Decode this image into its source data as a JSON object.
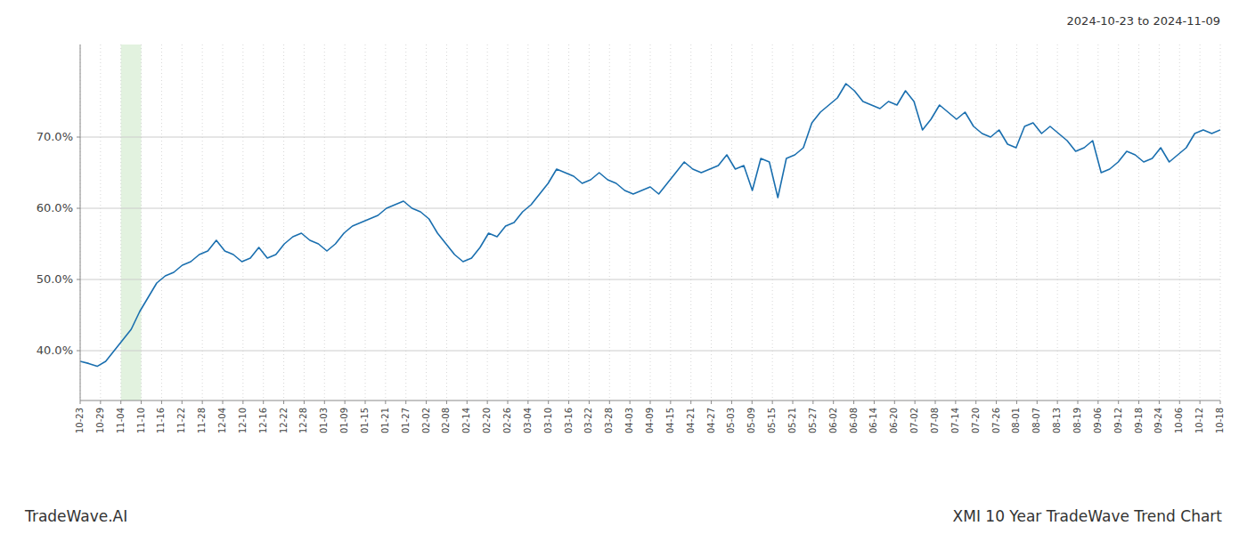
{
  "chart_data": {
    "type": "line",
    "title": "XMI 10 Year TradeWave Trend Chart",
    "subtitle": "2024-10-23 to 2024-11-09",
    "annotations": [
      "TradeWave.AI"
    ],
    "color": "#1a6faf",
    "grid": true,
    "highlight": {
      "xlim": [
        4.785714,
        7.178571
      ],
      "color": "#d6ecd2"
    },
    "xlim": [
      0,
      134
    ],
    "xticks": [
      {
        "value": 0,
        "label": "10-23"
      },
      {
        "value": 2.392857,
        "label": "10-29"
      },
      {
        "value": 4.785714,
        "label": "11-04"
      },
      {
        "value": 7.178571,
        "label": "11-10"
      },
      {
        "value": 9.571429,
        "label": "11-16"
      },
      {
        "value": 11.964286,
        "label": "11-22"
      },
      {
        "value": 14.357143,
        "label": "11-28"
      },
      {
        "value": 16.75,
        "label": "12-04"
      },
      {
        "value": 19.142857,
        "label": "12-10"
      },
      {
        "value": 21.535714,
        "label": "12-16"
      },
      {
        "value": 23.928571,
        "label": "12-22"
      },
      {
        "value": 26.321429,
        "label": "12-28"
      },
      {
        "value": 28.714286,
        "label": "01-03"
      },
      {
        "value": 31.107143,
        "label": "01-09"
      },
      {
        "value": 33.5,
        "label": "01-15"
      },
      {
        "value": 35.892857,
        "label": "01-21"
      },
      {
        "value": 38.285714,
        "label": "01-27"
      },
      {
        "value": 40.678571,
        "label": "02-02"
      },
      {
        "value": 43.071429,
        "label": "02-08"
      },
      {
        "value": 45.464286,
        "label": "02-14"
      },
      {
        "value": 47.857143,
        "label": "02-20"
      },
      {
        "value": 50.25,
        "label": "02-26"
      },
      {
        "value": 52.642857,
        "label": "03-04"
      },
      {
        "value": 55.035714,
        "label": "03-10"
      },
      {
        "value": 57.428571,
        "label": "03-16"
      },
      {
        "value": 59.821429,
        "label": "03-22"
      },
      {
        "value": 62.214286,
        "label": "03-28"
      },
      {
        "value": 64.607143,
        "label": "04-03"
      },
      {
        "value": 67,
        "label": "04-09"
      },
      {
        "value": 69.392857,
        "label": "04-15"
      },
      {
        "value": 71.785714,
        "label": "04-21"
      },
      {
        "value": 74.178571,
        "label": "04-27"
      },
      {
        "value": 76.571429,
        "label": "05-03"
      },
      {
        "value": 78.964286,
        "label": "05-09"
      },
      {
        "value": 81.357143,
        "label": "05-15"
      },
      {
        "value": 83.75,
        "label": "05-21"
      },
      {
        "value": 86.142857,
        "label": "05-27"
      },
      {
        "value": 88.535714,
        "label": "06-02"
      },
      {
        "value": 90.928571,
        "label": "06-08"
      },
      {
        "value": 93.321429,
        "label": "06-14"
      },
      {
        "value": 95.714286,
        "label": "06-20"
      },
      {
        "value": 98.107143,
        "label": "07-02"
      },
      {
        "value": 100.5,
        "label": "07-08"
      },
      {
        "value": 102.892857,
        "label": "07-14"
      },
      {
        "value": 105.285714,
        "label": "07-20"
      },
      {
        "value": 107.678571,
        "label": "07-26"
      },
      {
        "value": 110.071429,
        "label": "08-01"
      },
      {
        "value": 112.464286,
        "label": "08-07"
      },
      {
        "value": 114.857143,
        "label": "08-13"
      },
      {
        "value": 117.25,
        "label": "08-19"
      },
      {
        "value": 119.642857,
        "label": "09-06"
      },
      {
        "value": 122.035714,
        "label": "09-12"
      },
      {
        "value": 124.428571,
        "label": "09-18"
      },
      {
        "value": 126.821429,
        "label": "09-24"
      },
      {
        "value": 129.214286,
        "label": "10-06"
      },
      {
        "value": 131.607143,
        "label": "10-12"
      },
      {
        "value": 134,
        "label": "10-18"
      }
    ],
    "ylim": [
      33,
      83
    ],
    "yticks": [
      {
        "value": 40.0,
        "label": "40.0%"
      },
      {
        "value": 50.0,
        "label": "50.0%"
      },
      {
        "value": 60.0,
        "label": "60.0%"
      },
      {
        "value": 70.0,
        "label": "70.0%"
      }
    ],
    "values": [
      38.5,
      38.2,
      37.8,
      38.5,
      40.0,
      41.5,
      43.0,
      45.5,
      47.5,
      49.5,
      50.5,
      51.0,
      52.0,
      52.5,
      53.5,
      54.0,
      55.5,
      54.0,
      53.5,
      52.5,
      53.0,
      54.5,
      53.0,
      53.5,
      55.0,
      56.0,
      56.5,
      55.5,
      55.0,
      54.0,
      55.0,
      56.5,
      57.5,
      58.0,
      58.5,
      59.0,
      60.0,
      60.5,
      61.0,
      60.0,
      59.5,
      58.5,
      56.5,
      55.0,
      53.5,
      52.5,
      53.0,
      54.5,
      56.5,
      56.0,
      57.5,
      58.0,
      59.5,
      60.5,
      62.0,
      63.5,
      65.5,
      65.0,
      64.5,
      63.5,
      64.0,
      65.0,
      64.0,
      63.5,
      62.5,
      62.0,
      62.5,
      63.0,
      62.0,
      63.5,
      65.0,
      66.5,
      65.5,
      65.0,
      65.5,
      66.0,
      67.5,
      65.5,
      66.0,
      62.5,
      67.0,
      66.5,
      61.5,
      67.0,
      67.5,
      68.5,
      72.0,
      73.5,
      74.5,
      75.5,
      77.5,
      76.5,
      75.0,
      74.5,
      74.0,
      75.0,
      74.5,
      76.5,
      75.0,
      71.0,
      72.5,
      74.5,
      73.5,
      72.5,
      73.5,
      71.5,
      70.5,
      70.0,
      71.0,
      69.0,
      68.5,
      71.5,
      72.0,
      70.5,
      71.5,
      70.5,
      69.5,
      68.0,
      68.5,
      69.5,
      65.0,
      65.5,
      66.5,
      68.0,
      67.5,
      66.5,
      67.0,
      68.5,
      66.5,
      67.5,
      68.5,
      70.5,
      71.0,
      70.5,
      71.0
    ]
  }
}
